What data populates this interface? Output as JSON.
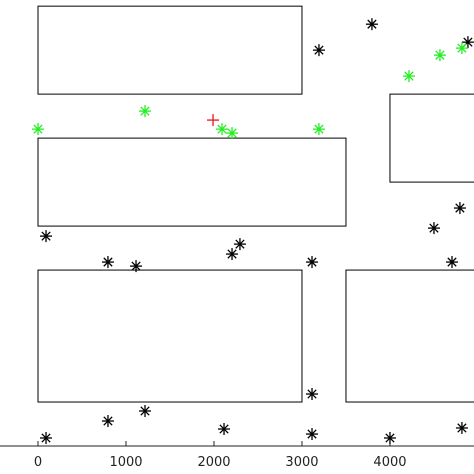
{
  "chart_data": {
    "type": "scatter",
    "xlim": [
      -432,
      4955
    ],
    "ylim": [
      0,
      5070
    ],
    "xticks": [
      0,
      1000,
      2000,
      3000,
      4000
    ],
    "rects": [
      {
        "x": 0,
        "y": 4000,
        "w": 3000,
        "h": 1000
      },
      {
        "x": 0,
        "y": 2500,
        "w": 3500,
        "h": 1000
      },
      {
        "x": 4000,
        "y": 3000,
        "w": 1000,
        "h": 1000
      },
      {
        "x": 0,
        "y": 500,
        "w": 3000,
        "h": 1500
      },
      {
        "x": 3500,
        "y": 500,
        "w": 1500,
        "h": 1500
      }
    ],
    "series": [
      {
        "color": "#000000",
        "marker": "asterisk",
        "x": [
          3193,
          3795,
          4886,
          91,
          795,
          1114,
          2205,
          2295,
          3114,
          4500,
          4795,
          4705,
          91,
          795,
          1216,
          2114,
          3114,
          3114,
          4000,
          4818
        ],
        "values": [
          4500,
          4795,
          4591,
          2386,
          2091,
          2045,
          2182,
          2295,
          2091,
          2477,
          2705,
          2091,
          91,
          284,
          398,
          193,
          136,
          591,
          91,
          205
        ]
      },
      {
        "color": "#22ee22",
        "marker": "asterisk",
        "x": [
          0,
          1216,
          2091,
          2205,
          3193,
          4216,
          4568,
          4818
        ],
        "values": [
          3602,
          3807,
          3602,
          3557,
          3602,
          4205,
          4443,
          4523
        ]
      },
      {
        "color": "#e8171b",
        "marker": "plus",
        "x": [
          1989
        ],
        "values": [
          3705
        ]
      }
    ]
  }
}
